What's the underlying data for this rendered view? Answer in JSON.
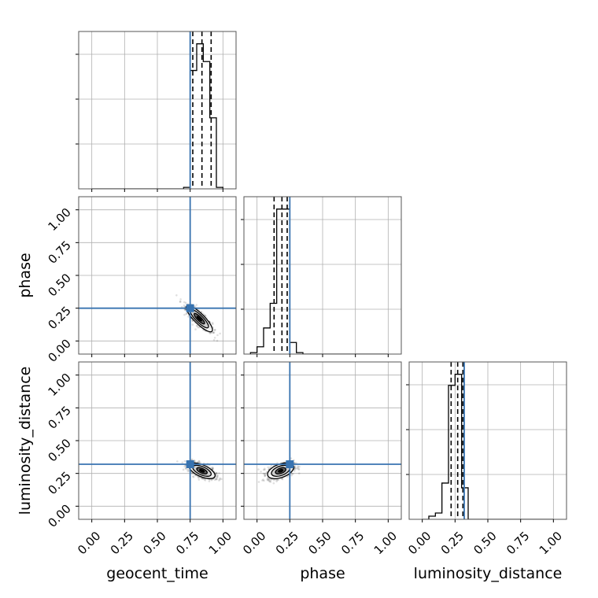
{
  "chart_data": {
    "type": "corner",
    "parameters": [
      "geocent_time",
      "phase",
      "luminosity_distance"
    ],
    "axis_range": [
      -0.1,
      1.1
    ],
    "tick_values": [
      0.0,
      0.25,
      0.5,
      0.75,
      1.0
    ],
    "tick_labels": [
      "0.00",
      "0.25",
      "0.50",
      "0.75",
      "1.00"
    ],
    "grid": true,
    "truths": {
      "geocent_time": 0.75,
      "phase": 0.25,
      "luminosity_distance": 0.32
    },
    "truth_color": "#3873b0",
    "line_color": "#000000",
    "grid_color": "#b0b0b0",
    "histograms": [
      {
        "parameter": "geocent_time",
        "bin_edges": [
          0.0,
          0.05,
          0.1,
          0.15,
          0.2,
          0.25,
          0.3,
          0.35,
          0.4,
          0.45,
          0.5,
          0.55,
          0.6,
          0.65,
          0.7,
          0.75,
          0.8,
          0.85,
          0.9,
          0.95,
          1.0
        ],
        "counts": [
          0,
          0,
          0,
          0,
          0,
          0,
          0,
          0,
          0,
          0,
          0,
          0,
          0,
          0,
          0.01,
          0.8,
          0.98,
          0.86,
          0.48,
          0.01
        ],
        "quantiles": [
          0.77,
          0.84,
          0.91
        ]
      },
      {
        "parameter": "phase",
        "bin_edges": [
          -0.05,
          0.0,
          0.05,
          0.1,
          0.15,
          0.2,
          0.25,
          0.3,
          0.35,
          0.4,
          0.45,
          0.5,
          0.55,
          0.6,
          0.65,
          0.7,
          0.75,
          0.8,
          0.85,
          0.9,
          0.95,
          1.0
        ],
        "counts": [
          0.01,
          0.05,
          0.18,
          0.35,
          1.0,
          1.0,
          0.08,
          0.01,
          0,
          0,
          0,
          0,
          0,
          0,
          0,
          0,
          0,
          0,
          0,
          0,
          0
        ],
        "quantiles": [
          0.13,
          0.19,
          0.23
        ]
      },
      {
        "parameter": "luminosity_distance",
        "bin_edges": [
          0.0,
          0.05,
          0.1,
          0.15,
          0.2,
          0.25,
          0.3,
          0.35,
          0.4,
          0.45,
          0.5,
          0.55,
          0.6,
          0.65,
          0.7,
          0.75,
          0.8,
          0.85,
          0.9,
          0.95,
          1.0
        ],
        "counts": [
          0,
          0.02,
          0.04,
          0.23,
          0.85,
          0.92,
          0.2,
          0,
          0,
          0,
          0,
          0,
          0,
          0,
          0,
          0,
          0,
          0,
          0,
          0
        ],
        "quantiles": [
          0.22,
          0.27,
          0.31
        ]
      }
    ],
    "posterior_2d": [
      {
        "x": "geocent_time",
        "y": "phase",
        "center": [
          0.82,
          0.17
        ],
        "spread": [
          0.05,
          0.05
        ],
        "correlation": -0.85
      },
      {
        "x": "geocent_time",
        "y": "luminosity_distance",
        "center": [
          0.84,
          0.27
        ],
        "spread": [
          0.05,
          0.03
        ],
        "correlation": -0.6
      },
      {
        "x": "phase",
        "y": "luminosity_distance",
        "center": [
          0.18,
          0.27
        ],
        "spread": [
          0.05,
          0.03
        ],
        "correlation": 0.45
      }
    ]
  }
}
